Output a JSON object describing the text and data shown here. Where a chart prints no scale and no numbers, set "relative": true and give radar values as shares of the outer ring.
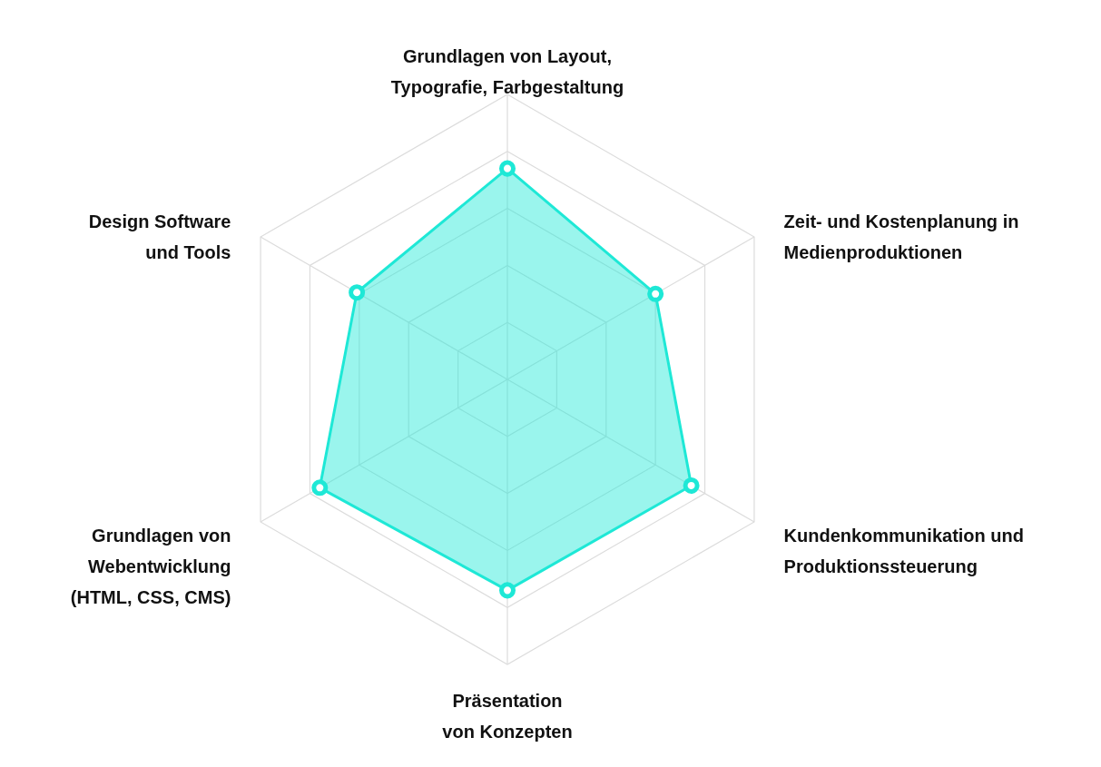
{
  "chart_data": {
    "type": "radar",
    "relative": true,
    "grid": true,
    "marker": "circle",
    "categories": [
      "Grundlagen von Layout,\nTypografie, Farbgestaltung",
      "Zeit- und Kostenplanung in\nMedienproduktionen",
      "Kundenkommunikation und\nProduktionssteuerung",
      "Präsentation\nvon Konzepten",
      "Grundlagen von\nWebentwicklung\n(HTML, CSS, CMS)",
      "Design Software\nund Tools"
    ],
    "series": [
      {
        "color": "#1ee8d6",
        "values": [
          0.74,
          0.6,
          0.745,
          0.74,
          0.76,
          0.61
        ]
      }
    ]
  }
}
